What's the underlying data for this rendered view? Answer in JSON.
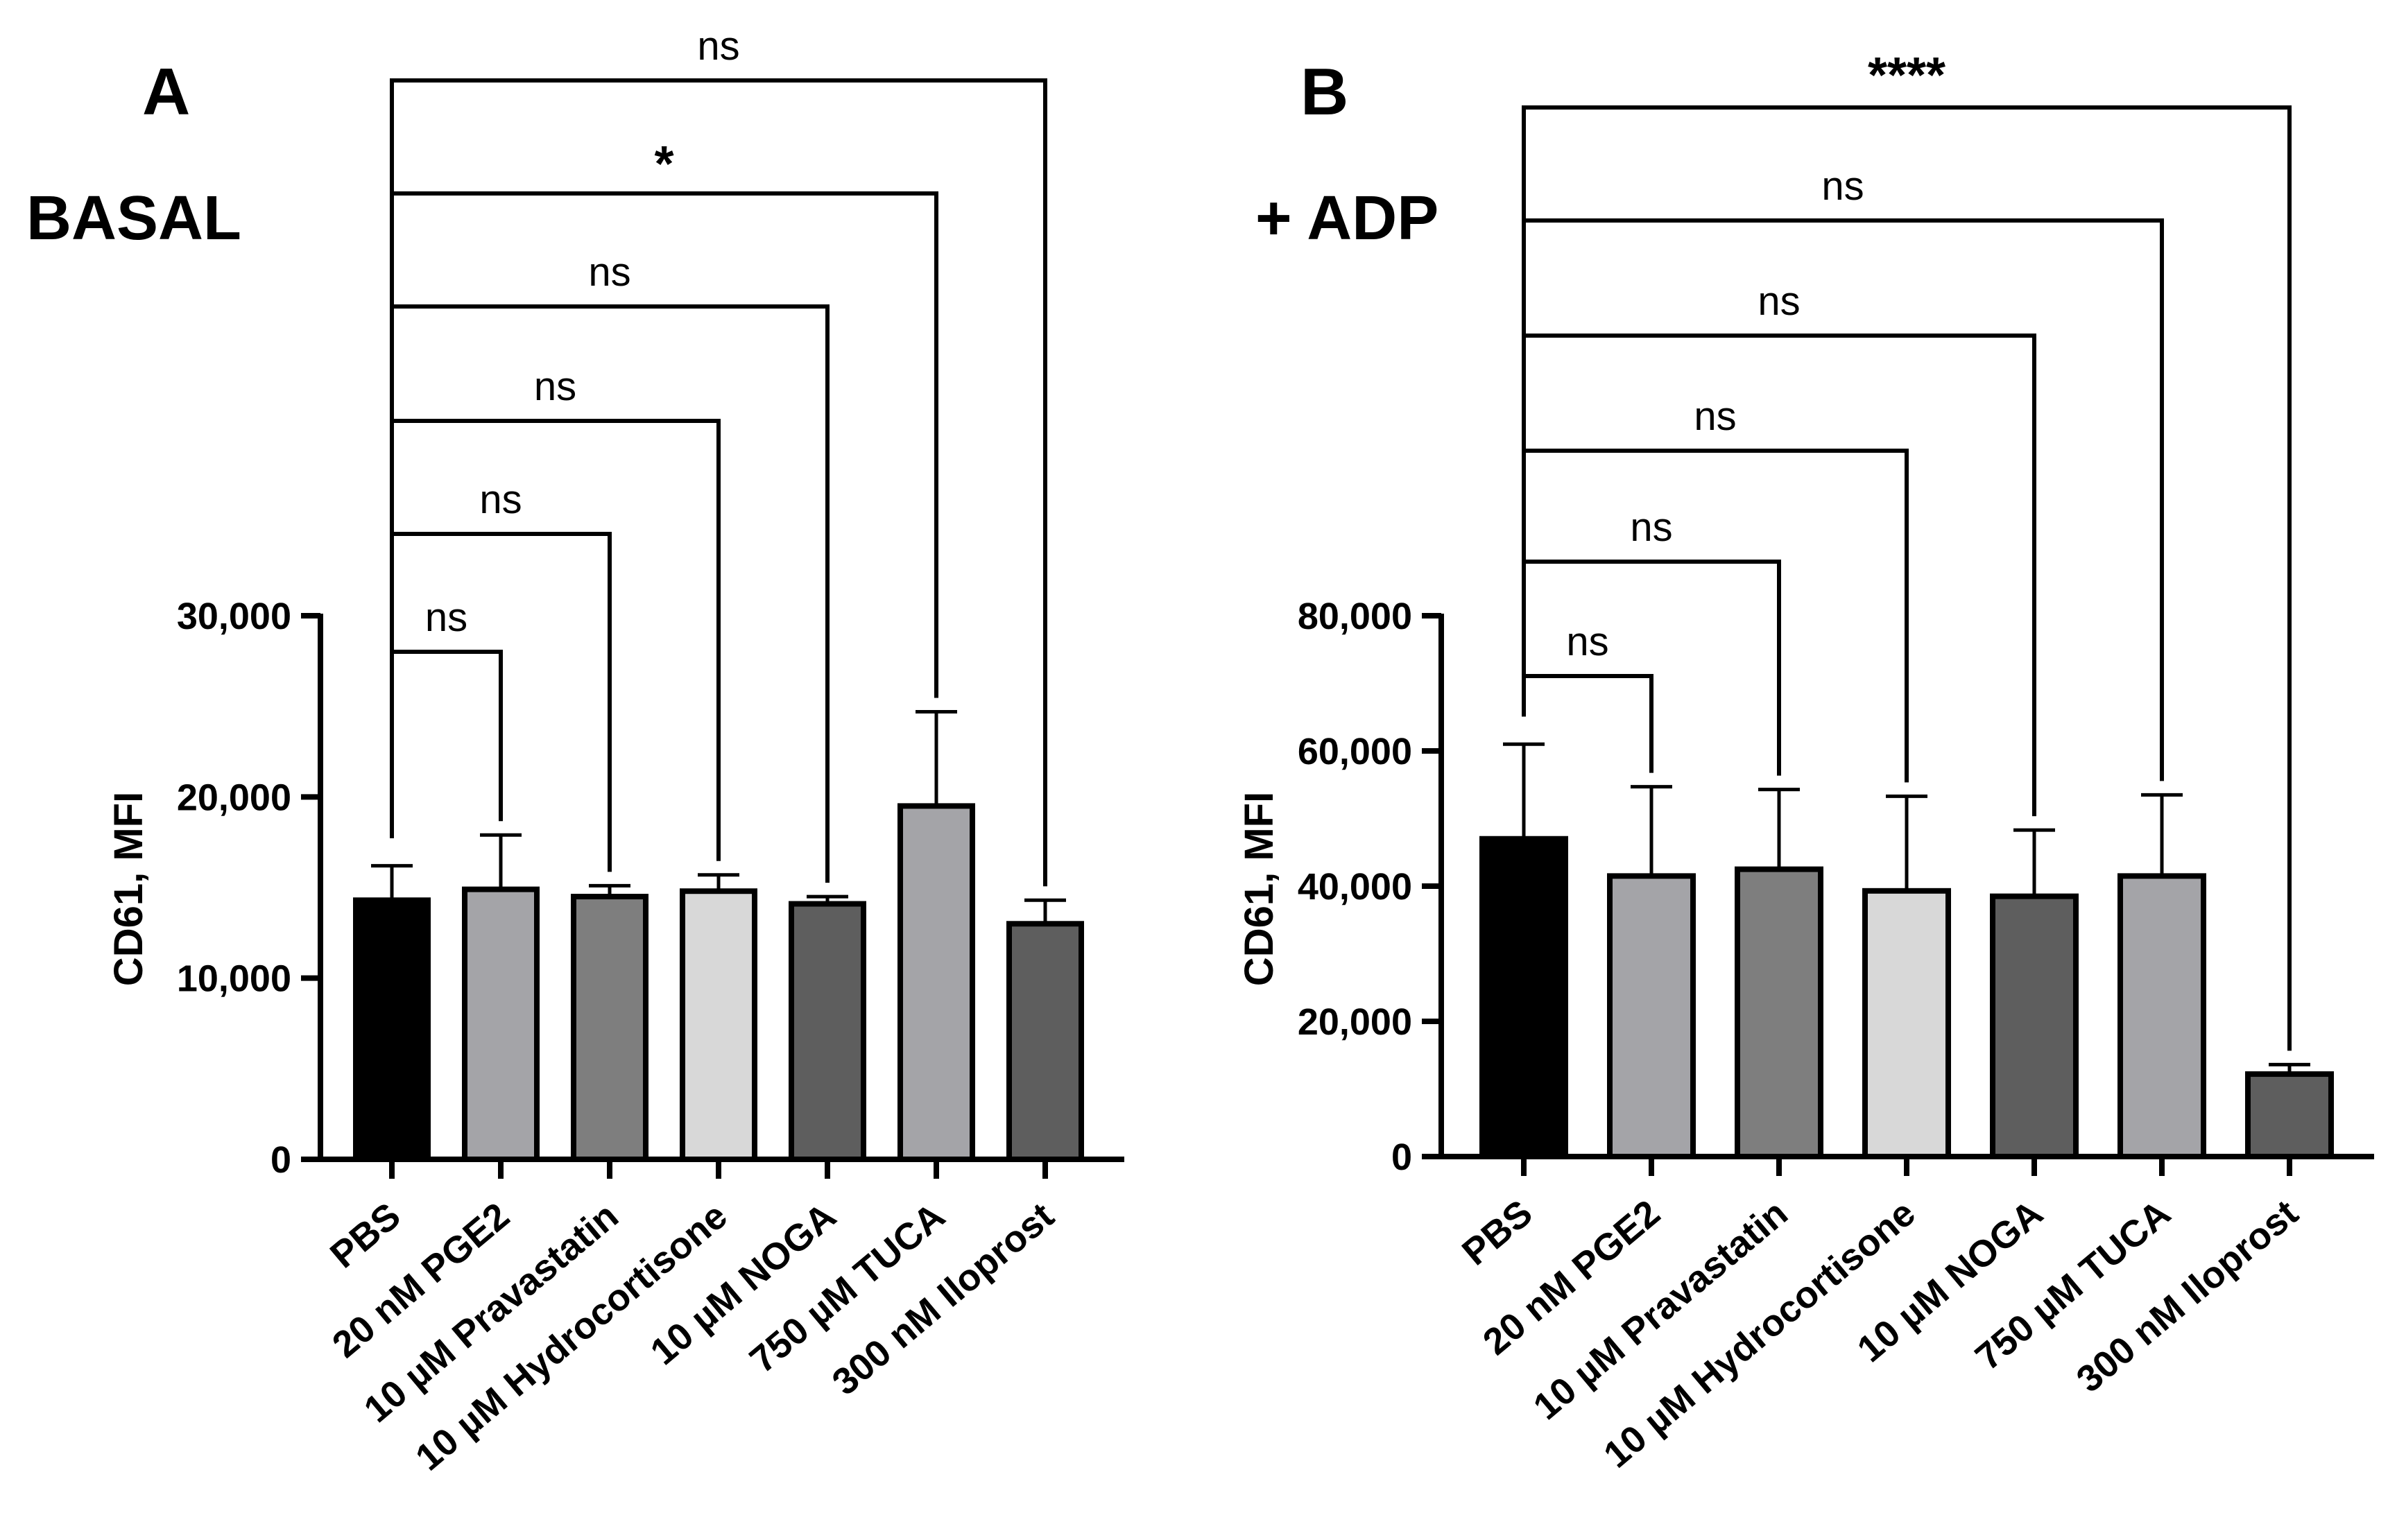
{
  "chart_data": [
    {
      "type": "bar",
      "panel": "A",
      "condition": "BASAL",
      "categories": [
        "PBS",
        "20 nM PGE2",
        "10 µM Pravastatin",
        "10 µM Hydrocortisone",
        "10 µM NOGA",
        "750 µM TUCA",
        "300 nM Iloprost"
      ],
      "values": [
        14300,
        14900,
        14500,
        14800,
        14100,
        19500,
        13000
      ],
      "errors": [
        1900,
        3000,
        600,
        900,
        400,
        5200,
        1300
      ],
      "bar_colors": [
        "#000000",
        "#a4a4a8",
        "#7e7e7e",
        "#d8d8d8",
        "#5e5e5e",
        "#a4a4a8",
        "#5e5e5e"
      ],
      "ylabel": "CD61, MFI",
      "ylim": [
        0,
        30000
      ],
      "yticks": [
        0,
        10000,
        20000,
        30000
      ],
      "ytick_labels": [
        "0",
        "10,000",
        "20,000",
        "30,000"
      ],
      "comparisons": [
        {
          "from": 0,
          "to": 1,
          "label": "ns"
        },
        {
          "from": 0,
          "to": 2,
          "label": "ns"
        },
        {
          "from": 0,
          "to": 3,
          "label": "ns"
        },
        {
          "from": 0,
          "to": 4,
          "label": "ns"
        },
        {
          "from": 0,
          "to": 5,
          "label": "*"
        },
        {
          "from": 0,
          "to": 6,
          "label": "ns"
        }
      ]
    },
    {
      "type": "bar",
      "panel": "B",
      "condition": "+ ADP",
      "categories": [
        "PBS",
        "20 nM PGE2",
        "10 µM Pravastatin",
        "10 µM Hydrocortisone",
        "10 µM NOGA",
        "750 µM TUCA",
        "300 nM Iloprost"
      ],
      "values": [
        47000,
        41500,
        42500,
        39300,
        38500,
        41500,
        12200
      ],
      "errors": [
        14000,
        13200,
        11800,
        14000,
        9800,
        12000,
        1400
      ],
      "bar_colors": [
        "#000000",
        "#a4a4a8",
        "#7e7e7e",
        "#d8d8d8",
        "#5e5e5e",
        "#a4a4a8",
        "#5e5e5e"
      ],
      "ylabel": "CD61, MFI",
      "ylim": [
        0,
        80000
      ],
      "yticks": [
        0,
        20000,
        40000,
        60000,
        80000
      ],
      "ytick_labels": [
        "0",
        "20,000",
        "40,000",
        "60,000",
        "80,000"
      ],
      "comparisons": [
        {
          "from": 0,
          "to": 1,
          "label": "ns"
        },
        {
          "from": 0,
          "to": 2,
          "label": "ns"
        },
        {
          "from": 0,
          "to": 3,
          "label": "ns"
        },
        {
          "from": 0,
          "to": 4,
          "label": "ns"
        },
        {
          "from": 0,
          "to": 5,
          "label": "ns"
        },
        {
          "from": 0,
          "to": 6,
          "label": "****"
        }
      ]
    }
  ]
}
